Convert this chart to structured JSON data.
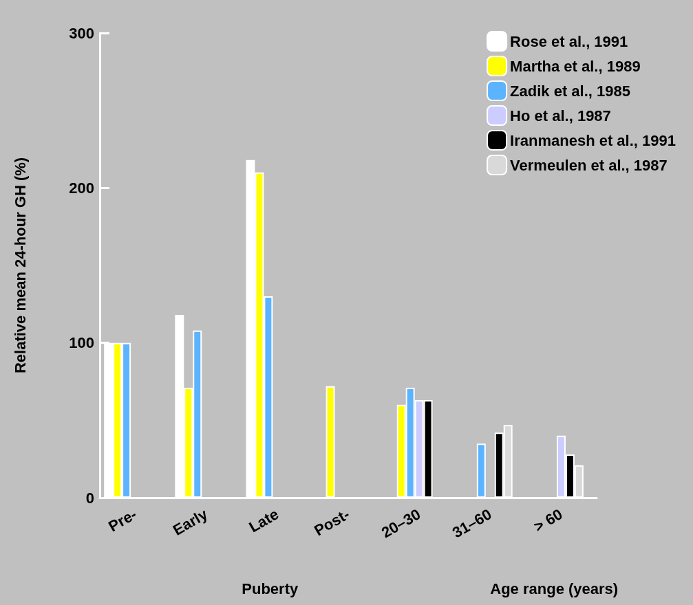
{
  "chart_data": {
    "type": "bar",
    "ylabel": "Relative mean 24-hour GH (%)",
    "categories": [
      "Pre-",
      "Early",
      "Late",
      "Post-",
      "20–30",
      "31–60",
      "> 60"
    ],
    "series": [
      {
        "name": "Rose et al., 1991",
        "color": "#ffffff",
        "values": [
          100,
          118,
          218,
          null,
          null,
          null,
          null
        ]
      },
      {
        "name": "Martha et al., 1989",
        "color": "#ffff00",
        "values": [
          100,
          71,
          210,
          72,
          60,
          null,
          null
        ]
      },
      {
        "name": "Zadik et al., 1985",
        "color": "#5cb3ff",
        "values": [
          100,
          108,
          130,
          null,
          71,
          35,
          null
        ]
      },
      {
        "name": "Ho et al., 1987",
        "color": "#ccccff",
        "values": [
          null,
          null,
          null,
          null,
          63,
          null,
          40
        ]
      },
      {
        "name": "Iranmanesh et al., 1991",
        "color": "#000000",
        "values": [
          null,
          null,
          null,
          null,
          63,
          42,
          28
        ]
      },
      {
        "name": "Vermeulen et al., 1987",
        "color": "#d9d9d9",
        "values": [
          null,
          null,
          null,
          null,
          null,
          47,
          21
        ]
      },
      {
        "color": "#e0e0e0",
        "values": [
          null,
          null,
          null,
          null,
          null,
          null,
          null
        ]
      }
    ],
    "ylim": [
      0,
      300
    ],
    "yticks": [
      0,
      100,
      200,
      300
    ],
    "grid": false,
    "legend": "top right",
    "annotations": [
      "Puberty",
      "Age range (years)"
    ]
  }
}
